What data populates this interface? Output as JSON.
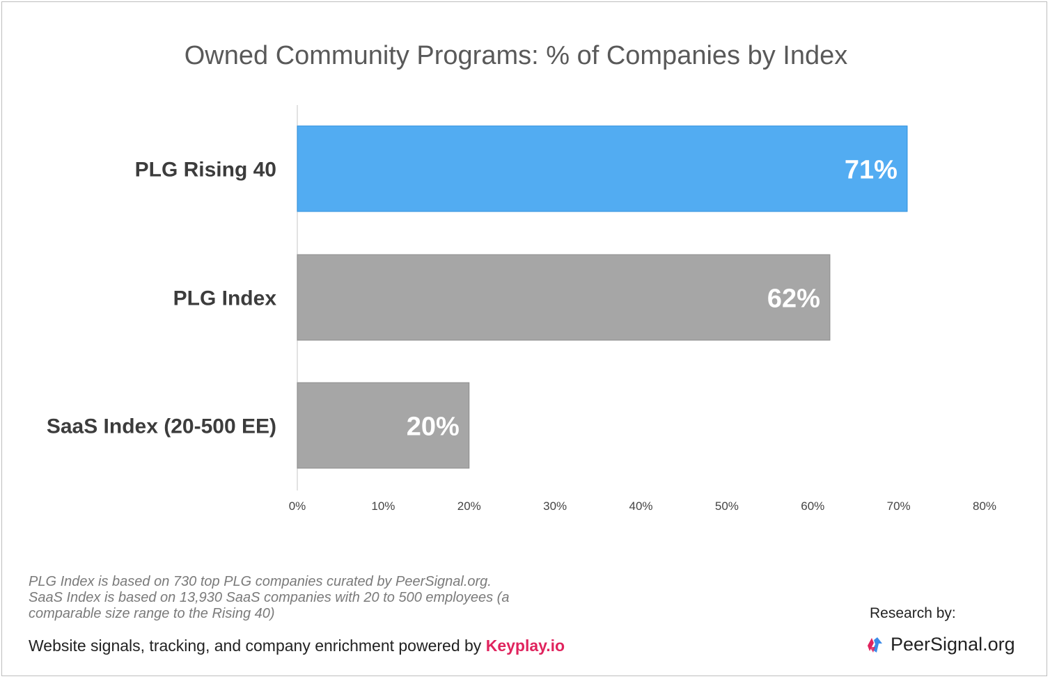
{
  "chart_data": {
    "type": "bar",
    "orientation": "horizontal",
    "title": "Owned Community Programs: % of Companies by Index",
    "categories": [
      "PLG Rising 40",
      "PLG Index",
      "SaaS Index (20-500 EE)"
    ],
    "values": [
      71,
      62,
      20
    ],
    "value_labels": [
      "71%",
      "62%",
      "20%"
    ],
    "bar_colors": [
      "#52acf2",
      "#a6a6a6",
      "#a6a6a6"
    ],
    "xlim": [
      0,
      80
    ],
    "xticks": [
      0,
      10,
      20,
      30,
      40,
      50,
      60,
      70,
      80
    ],
    "xtick_labels": [
      "0%",
      "10%",
      "20%",
      "30%",
      "40%",
      "50%",
      "60%",
      "70%",
      "80%"
    ],
    "xlabel": "",
    "ylabel": "",
    "grid": false
  },
  "footnote": {
    "line1": "PLG Index is based on 730 top PLG companies curated by PeerSignal.org.",
    "line2": "SaaS Index is based on 13,930 SaaS companies with 20 to 500 employees (a",
    "line3": "comparable size range to the Rising 40)"
  },
  "credits": {
    "powered_text": "Website signals, tracking, and company enrichment powered by ",
    "powered_brand": "Keyplay.io",
    "research_label": "Research by:",
    "logo_text": "PeerSignal.org",
    "brand_color": "#e0245e",
    "logo_icon": "peersignal-logo-icon"
  }
}
